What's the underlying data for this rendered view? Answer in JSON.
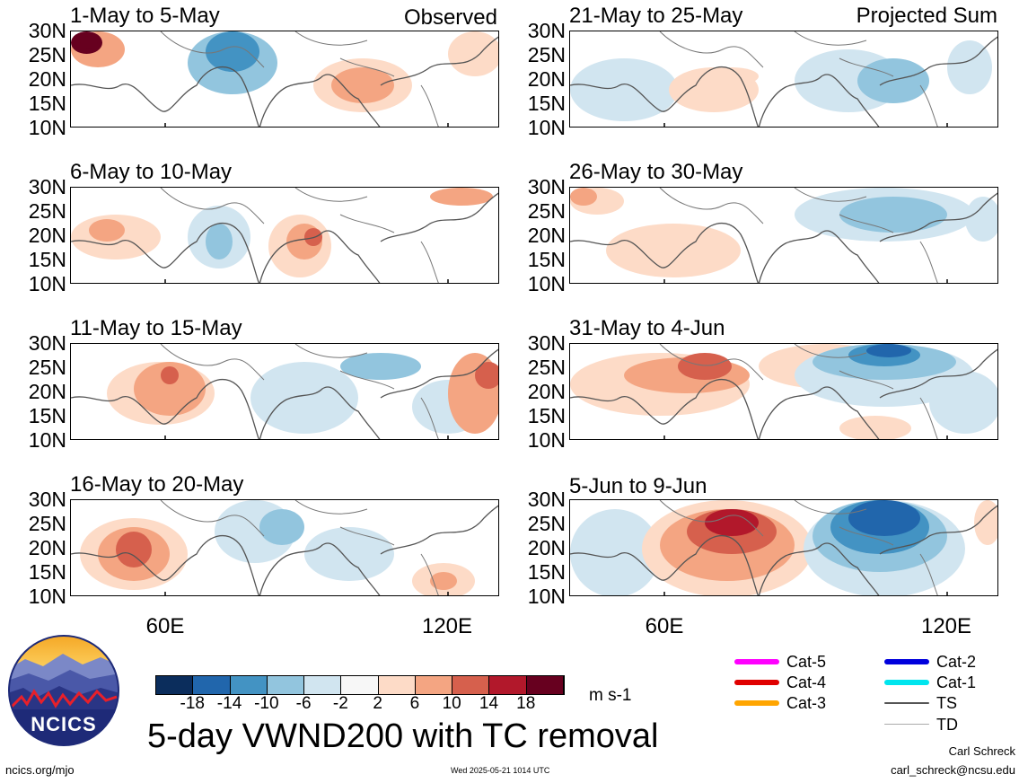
{
  "header": {
    "left_tag": "Observed",
    "right_tag": "Projected Sum"
  },
  "panels": [
    {
      "title": "1-May to 5-May",
      "column": "left",
      "row": 0
    },
    {
      "title": "6-May to 10-May",
      "column": "left",
      "row": 1
    },
    {
      "title": "11-May to 15-May",
      "column": "left",
      "row": 2
    },
    {
      "title": "16-May to 20-May",
      "column": "left",
      "row": 3
    },
    {
      "title": "21-May to 25-May",
      "column": "right",
      "row": 0
    },
    {
      "title": "26-May to 30-May",
      "column": "right",
      "row": 1
    },
    {
      "title": "31-May to 4-Jun",
      "column": "right",
      "row": 2
    },
    {
      "title": "5-Jun to 9-Jun",
      "column": "right",
      "row": 3
    }
  ],
  "lat_labels": [
    "30N",
    "25N",
    "20N",
    "15N",
    "10N"
  ],
  "lon_labels": [
    "60E",
    "120E"
  ],
  "colorbar": {
    "labels": [
      "-18",
      "-14",
      "-10",
      "-6",
      "-2",
      "2",
      "6",
      "10",
      "14",
      "18"
    ],
    "colors": [
      "#0b2d5c",
      "#2166ac",
      "#4393c3",
      "#92c5de",
      "#d1e5f0",
      "#f7f7f7",
      "#fddbc7",
      "#f4a582",
      "#d6604d",
      "#b2182b",
      "#67001f"
    ],
    "units": "m s-1"
  },
  "title": "5-day VWND200 with TC removal",
  "logo": {
    "text": "NCICS"
  },
  "footer": {
    "link": "ncics.org/mjo",
    "timestamp": "Wed 2025-05-21 1014 UTC",
    "author": "Carl Schreck",
    "email": "carl_schreck@ncsu.edu"
  },
  "tc_legend": [
    {
      "label": "Cat-5",
      "color": "#ff00ff"
    },
    {
      "label": "Cat-4",
      "color": "#e00000"
    },
    {
      "label": "Cat-3",
      "color": "#ffa500"
    },
    {
      "label": "Cat-2",
      "color": "#0000dd"
    },
    {
      "label": "Cat-1",
      "color": "#00e5ee"
    },
    {
      "label": "TS",
      "color": "#555555"
    },
    {
      "label": "TD",
      "color": "#aaaaaa"
    }
  ]
}
